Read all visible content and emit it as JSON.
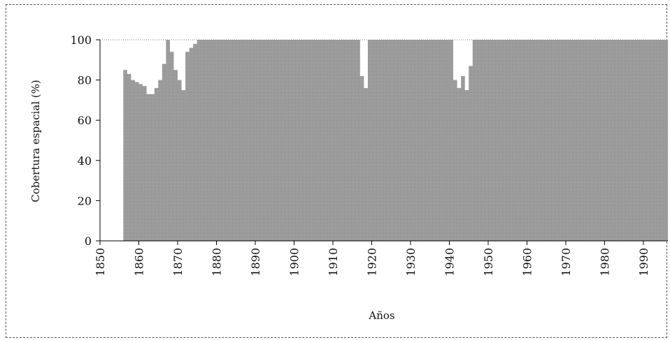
{
  "chart_data": {
    "type": "area",
    "title": "",
    "xlabel": "Años",
    "ylabel": "Cobertura espacial (%)",
    "xlim": [
      1850,
      1998
    ],
    "ylim": [
      0,
      100
    ],
    "x_ticks": [
      "1850",
      "1860",
      "1870",
      "1880",
      "1890",
      "1900",
      "1910",
      "1920",
      "1930",
      "1940",
      "1950",
      "1960",
      "1970",
      "1980",
      "1990"
    ],
    "y_ticks": [
      "0",
      "20",
      "40",
      "60",
      "80",
      "100"
    ],
    "grid": false,
    "fill_color": "#8c8c8c",
    "series": [
      {
        "x": [
          1855.5,
          1856,
          1857,
          1858,
          1859,
          1860,
          1861,
          1862,
          1863,
          1864,
          1865,
          1866,
          1867,
          1868,
          1869,
          1870,
          1871,
          1872,
          1873,
          1874,
          1875,
          1916,
          1917,
          1918,
          1919,
          1920,
          1940,
          1941,
          1942,
          1943,
          1944,
          1945,
          1946,
          1998
        ],
        "y": [
          0,
          85,
          83,
          80,
          79,
          78,
          77,
          73,
          73,
          76,
          80,
          88,
          100,
          94,
          85,
          80,
          75,
          94,
          96,
          98,
          100,
          100,
          82,
          76,
          100,
          100,
          100,
          80,
          76,
          82,
          75,
          87,
          100,
          100
        ]
      }
    ]
  }
}
